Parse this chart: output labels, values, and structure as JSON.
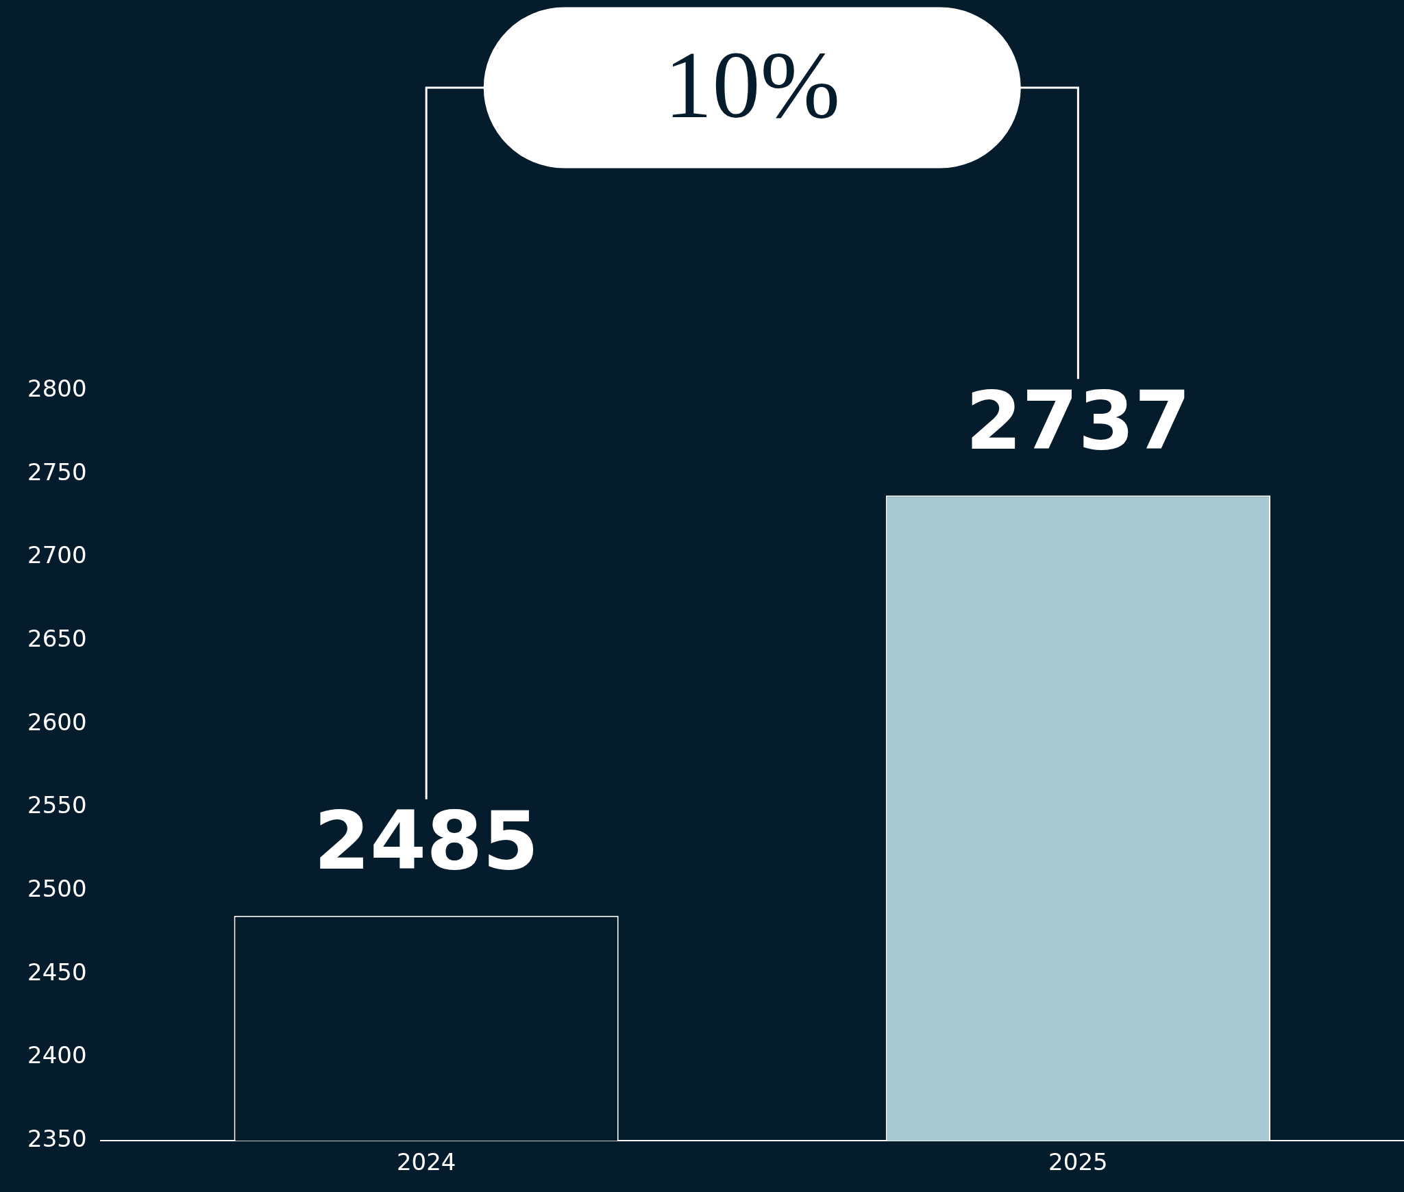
{
  "chart_data": {
    "type": "bar",
    "categories": [
      "2024",
      "2025"
    ],
    "values": [
      2485,
      2737
    ],
    "colors": [
      "#051c2c",
      "#a8c8d2"
    ],
    "ylim": [
      2350,
      2800
    ],
    "yticks": [
      2350,
      2400,
      2450,
      2500,
      2550,
      2600,
      2650,
      2700,
      2750,
      2800
    ],
    "grid": false,
    "legend": false,
    "data_labels": true,
    "annotations": [
      "10%"
    ]
  }
}
